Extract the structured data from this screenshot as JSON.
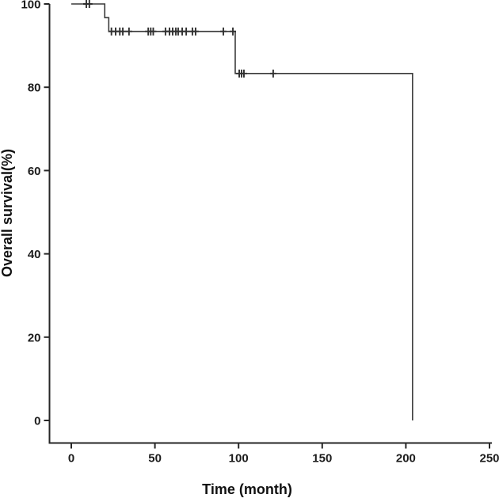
{
  "figure": {
    "background": "#ffffff",
    "curve_color": "#3a3a3a",
    "axis_color": "#262626",
    "censor_color": "#303030",
    "text_color": "#1c1c1c"
  },
  "chart_data": {
    "type": "line",
    "subtype": "kaplan-meier-step",
    "title": "",
    "xlabel": "Time (month)",
    "ylabel": "Overall survival(%)",
    "xlim": [
      0,
      250
    ],
    "ylim": [
      0,
      100
    ],
    "xticks": [
      0,
      50,
      100,
      150,
      200,
      250
    ],
    "yticks": [
      0,
      20,
      40,
      60,
      80,
      100
    ],
    "grid": false,
    "legend": null,
    "series": [
      {
        "name": "Overall survival",
        "color": "#3a3a3a",
        "steps": [
          [
            0,
            100
          ],
          [
            20,
            100
          ],
          [
            20,
            96.7
          ],
          [
            22.4,
            96.7
          ],
          [
            22.4,
            93.4
          ],
          [
            98,
            93.4
          ],
          [
            98,
            83.3
          ],
          [
            204,
            83.3
          ],
          [
            204,
            0
          ]
        ],
        "censor_marks": [
          [
            9,
            100
          ],
          [
            10.8,
            100
          ],
          [
            24,
            93.4
          ],
          [
            26.5,
            93.4
          ],
          [
            29,
            93.4
          ],
          [
            30.8,
            93.4
          ],
          [
            34.5,
            93.4
          ],
          [
            46,
            93.4
          ],
          [
            47.5,
            93.4
          ],
          [
            49,
            93.4
          ],
          [
            56.3,
            93.4
          ],
          [
            58.7,
            93.4
          ],
          [
            60.6,
            93.4
          ],
          [
            62.5,
            93.4
          ],
          [
            63.9,
            93.4
          ],
          [
            66.3,
            93.4
          ],
          [
            68.7,
            93.4
          ],
          [
            72.4,
            93.4
          ],
          [
            74.3,
            93.4
          ],
          [
            90.9,
            93.4
          ],
          [
            96.6,
            93.4
          ],
          [
            100.4,
            83.3
          ],
          [
            101.8,
            83.3
          ],
          [
            103.2,
            83.3
          ],
          [
            120.7,
            83.3
          ]
        ]
      }
    ]
  }
}
